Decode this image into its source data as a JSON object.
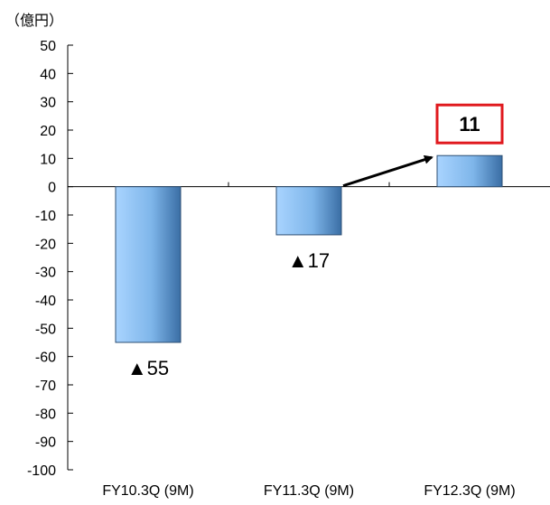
{
  "chart_data": {
    "type": "bar",
    "unit_label": "（億円）",
    "categories": [
      "FY10.3Q (9M)",
      "FY11.3Q (9M)",
      "FY12.3Q (9M)"
    ],
    "values": [
      -55,
      -17,
      11
    ],
    "data_labels": [
      "▲55",
      "▲17",
      "11"
    ],
    "highlighted_label": "11",
    "ylim": [
      -100,
      50
    ],
    "yticks": [
      50,
      40,
      30,
      20,
      10,
      0,
      -10,
      -20,
      -30,
      -40,
      -50,
      -60,
      -70,
      -80,
      -90,
      -100
    ],
    "ytick_labels": [
      "50",
      "40",
      "30",
      "20",
      "10",
      "0",
      "-10",
      "-20",
      "-30",
      "-40",
      "-50",
      "-60",
      "-70",
      "-80",
      "-90",
      "-100"
    ],
    "grid": false,
    "legend": "none",
    "arrow": {
      "from_category": "FY11.3Q (9M)",
      "to_category": "FY12.3Q (9M)"
    },
    "colors": {
      "bar_light": "#a9d4ff",
      "bar_mid": "#7fb6ea",
      "bar_dark": "#3a6ea5",
      "bar_border": "#2e4f73",
      "axis": "#000000",
      "highlight_box": "#e0191e",
      "text": "#000000"
    }
  }
}
